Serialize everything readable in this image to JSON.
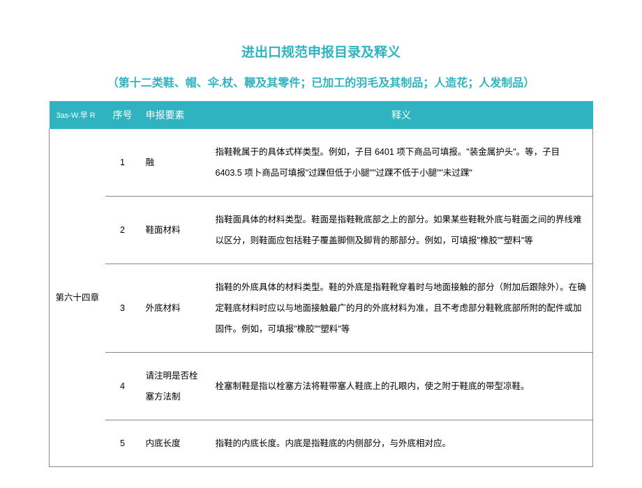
{
  "title_main": "进出口规范申报目录及释义",
  "title_sub": "（第十二类鞋、帽、伞.杖、鞭及其零件；已加工的羽毛及其制品；人造花；人发制品）",
  "header": {
    "chapter": "3as-W.早 R",
    "seq": "序号",
    "element": "申报要素",
    "meaning": "释义"
  },
  "chapter_label": "第六十四章",
  "rows": [
    {
      "seq": "1",
      "element": "融",
      "meaning": "指鞋靴属于的具体式样类型。例如，子目 6401 项下商品可填报。\"装金属护头\"。等，子目 6403.5 项卜商品可填报\"过踝但低于小腿\"\"过踝不低于小腿\"\"未过踝\""
    },
    {
      "seq": "2",
      "element": "鞋面材料",
      "meaning": "指鞋面具体的材料类型。鞋面是指鞋靴底部之上的部分。如果某些鞋靴外底与鞋面之间的界线难以区分，则鞋面应包括鞋子覆盖脚侧及脚背的那部分。例如，可填报\"橡胶\"\"塑料\"等"
    },
    {
      "seq": "3",
      "element": "外底材料",
      "meaning": "指鞋的外底具体的材料类型。鞋的外底是指鞋靴穿着时与地面接触的部分（附加后跟除外）。在确定鞋底材料时应以与地面接触最广的月的外底材料为准，且不考虑部分鞋靴底部所附的配件或加固件。例如，可填报\"橡胶\"\"塑料\"等"
    },
    {
      "seq": "4",
      "element": "请注明是否栓塞方法制",
      "meaning": "栓塞制鞋是指以栓塞方法将鞋带塞人鞋底上的孔眼内，使之附于鞋底的带型凉鞋。"
    },
    {
      "seq": "5",
      "element": "内底长度",
      "meaning": "指鞋的内底长度。内底是指鞋底的内侧部分，与外底相对应。"
    }
  ],
  "colors": {
    "accent": "#2fb3c0",
    "text": "#000000",
    "border": "#888888",
    "header_text": "#ffffff",
    "background": "#ffffff"
  }
}
